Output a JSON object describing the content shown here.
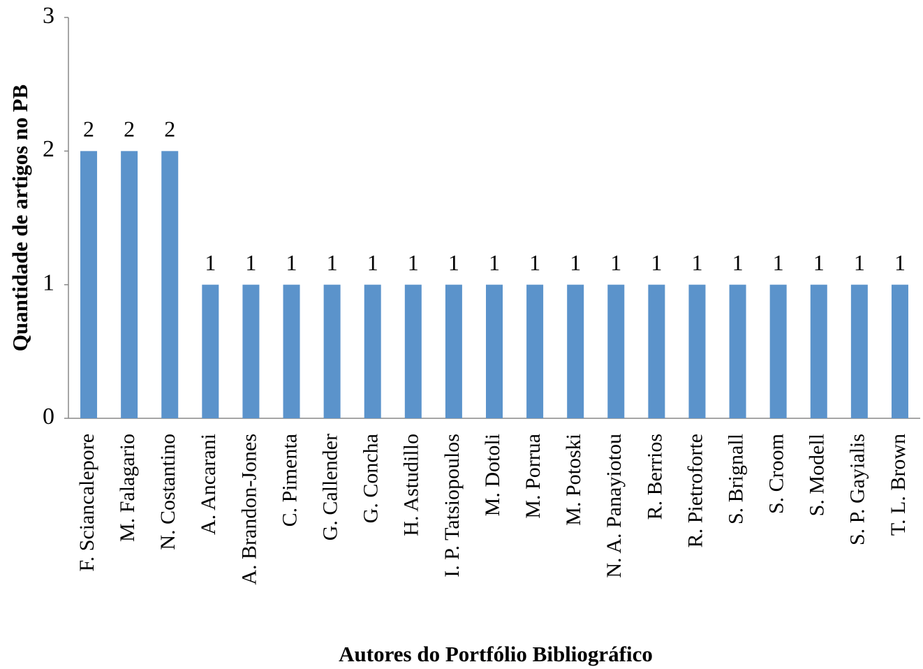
{
  "chart_data": {
    "type": "bar",
    "xlabel": "Autores do Portfólio Bibliográfico",
    "ylabel": "Quantidade de artigos no PB",
    "categories": [
      "F. Sciancalepore",
      "M. Falagario",
      "N. Costantino",
      "A. Ancarani",
      "A. Brandon-Jones",
      "C. Pimenta",
      "G. Callender",
      "G. Concha",
      "H. Astudillo",
      "I. P. Tatsiopoulos",
      "M. Dotoli",
      "M. Porrua",
      "M. Potoski",
      "N. A. Panayiotou",
      "R. Berrios",
      "R. Pietroforte",
      "S. Brignall",
      "S. Croom",
      "S. Modell",
      "S. P. Gayialis",
      "T. L. Brown"
    ],
    "values": [
      2,
      2,
      2,
      1,
      1,
      1,
      1,
      1,
      1,
      1,
      1,
      1,
      1,
      1,
      1,
      1,
      1,
      1,
      1,
      1,
      1
    ],
    "color": "#5b93cb",
    "ylim": [
      0,
      3
    ],
    "yticks": [
      0,
      1,
      2,
      3
    ],
    "grid": false
  }
}
